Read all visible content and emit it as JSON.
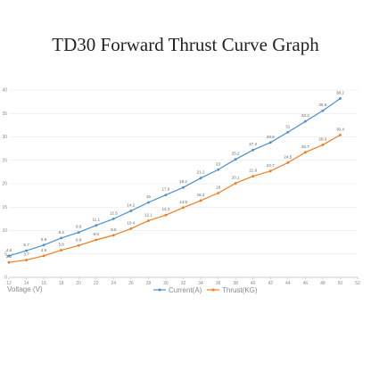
{
  "title": "TD30 Forward Thrust Curve Graph",
  "colors": {
    "series1": "#4A90D0",
    "series2": "#F27B1E",
    "grid": "#E4E4E4",
    "axis": "#BFBFBF"
  },
  "chart_data": {
    "type": "line",
    "title": "TD30 Forward Thrust Curve Graph",
    "xlabel": "Voltage (V)",
    "ylabel": "",
    "x": [
      12,
      14,
      16,
      18,
      20,
      22,
      24,
      26,
      28,
      30,
      32,
      34,
      36,
      38,
      40,
      42,
      44,
      46,
      48,
      50
    ],
    "xlim": [
      12,
      52
    ],
    "ylim": [
      0,
      40
    ],
    "xticks": [
      12,
      14,
      16,
      18,
      20,
      22,
      24,
      26,
      28,
      30,
      32,
      34,
      36,
      38,
      40,
      42,
      44,
      46,
      48,
      50,
      52
    ],
    "yticks": [
      0,
      5,
      10,
      15,
      20,
      25,
      30,
      35,
      40
    ],
    "grid": true,
    "legend": "bottom",
    "series": [
      {
        "name": "Current(A)",
        "values": [
          4.6,
          5.7,
          6.9,
          8.4,
          9.6,
          11.1,
          12.5,
          14.2,
          16,
          17.6,
          19.2,
          21.2,
          23,
          25.2,
          27.2,
          28.8,
          31,
          33.3,
          35.6,
          38.2
        ],
        "labels": [
          "4.6",
          "5.7",
          "6.9",
          "8.4",
          "9.6",
          "11.1",
          "12.5",
          "14.2",
          "16",
          "17.6",
          "19.2",
          "21.2",
          "23",
          "25.2",
          "27.2",
          "28.8",
          "31",
          "33.3",
          "35.6",
          "38.2"
        ]
      },
      {
        "name": "Thrust(KG)",
        "values": [
          3.2,
          3.7,
          4.6,
          5.8,
          6.8,
          8.0,
          9.0,
          10.4,
          12.1,
          13.3,
          14.9,
          16.4,
          18,
          20.1,
          21.6,
          22.7,
          24.5,
          26.7,
          28.3,
          30.4
        ],
        "labels": [
          "3.2",
          "3.7",
          "4.6",
          "5.8",
          "6.8",
          "8.0",
          "9.0",
          "10.4",
          "12.1",
          "13.3",
          "14.9",
          "16.4",
          "18",
          "20.1",
          "21.6",
          "22.7",
          "24.5",
          "26.7",
          "28.3",
          "30.4"
        ]
      }
    ]
  }
}
